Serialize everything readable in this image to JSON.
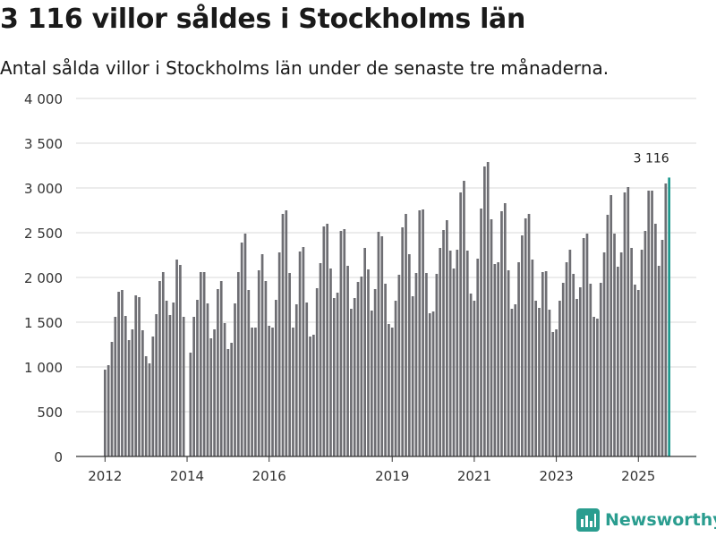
{
  "brand": {
    "name": "Newsworthy",
    "color": "#2a9d8f",
    "icon": "bar-chart-logo-icon"
  },
  "chart_data": {
    "type": "bar",
    "title": "3 116 villor såldes i Stockholms län",
    "subtitle": "Antal sålda villor i Stockholms län under de senaste tre månaderna.",
    "xlabel": "",
    "ylabel": "",
    "ylim": [
      0,
      4000
    ],
    "yticks": [
      0,
      500,
      1000,
      1500,
      2000,
      2500,
      3000,
      3500,
      4000
    ],
    "ytick_labels": [
      "0",
      "500",
      "1 000",
      "1 500",
      "2 000",
      "2 500",
      "3 000",
      "3 500",
      "4 000"
    ],
    "grid": true,
    "bar_color": "#6e6e73",
    "highlight_color": "#1f9a8f",
    "xticks": [
      {
        "label": "2012",
        "index": 0
      },
      {
        "label": "2014",
        "index": 24
      },
      {
        "label": "2016",
        "index": 48
      },
      {
        "label": "2019",
        "index": 84
      },
      {
        "label": "2021",
        "index": 108
      },
      {
        "label": "2023",
        "index": 132
      },
      {
        "label": "2025",
        "index": 156
      }
    ],
    "highlight_label": "3 116",
    "start": "2012-01",
    "values": [
      970,
      1020,
      1280,
      1560,
      1840,
      1860,
      1570,
      1300,
      1420,
      1800,
      1780,
      1410,
      1120,
      1040,
      1340,
      1590,
      1960,
      2060,
      1740,
      1580,
      1720,
      2200,
      2140,
      1560,
      0,
      1160,
      1560,
      1750,
      2060,
      2060,
      1710,
      1320,
      1420,
      1870,
      1960,
      1490,
      1200,
      1270,
      1710,
      2060,
      2390,
      2490,
      1860,
      1440,
      1440,
      2080,
      2260,
      1960,
      1460,
      1440,
      1750,
      2280,
      2710,
      2750,
      2050,
      1440,
      1700,
      2290,
      2340,
      1720,
      1340,
      1360,
      1880,
      2160,
      2570,
      2600,
      2100,
      1770,
      1830,
      2520,
      2540,
      2130,
      1650,
      1770,
      1950,
      2010,
      2330,
      2090,
      1630,
      1870,
      2510,
      2460,
      1930,
      1480,
      1440,
      1740,
      2030,
      2560,
      2710,
      2260,
      1790,
      2050,
      2750,
      2760,
      2050,
      1600,
      1620,
      2040,
      2330,
      2530,
      2640,
      2300,
      2100,
      2310,
      2950,
      3080,
      2300,
      1820,
      1740,
      2210,
      2770,
      3240,
      3290,
      2650,
      2150,
      2170,
      2740,
      2830,
      2080,
      1650,
      1700,
      2170,
      2470,
      2660,
      2710,
      2200,
      1740,
      1660,
      2060,
      2070,
      1640,
      1390,
      1420,
      1740,
      1940,
      2170,
      2310,
      2040,
      1760,
      1890,
      2440,
      2490,
      1930,
      1560,
      1540,
      1940,
      2280,
      2700,
      2920,
      2490,
      2120,
      2280,
      2950,
      3010,
      2330,
      1920,
      1860,
      2310,
      2520,
      2970,
      2970,
      2600,
      2130,
      2420,
      3050,
      3116
    ]
  }
}
